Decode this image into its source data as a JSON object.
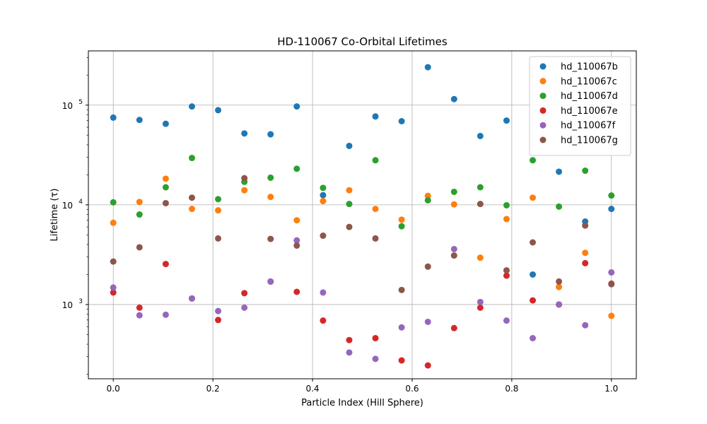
{
  "chart_data": {
    "type": "scatter",
    "title": "HD-110067 Co-Orbital Lifetimes",
    "xlabel": "Particle Index (Hill Sphere)",
    "ylabel": "Lifetime (τ)",
    "yscale": "log",
    "xlim": [
      -0.05,
      1.05
    ],
    "ylim": [
      180,
      350000
    ],
    "grid": true,
    "legend_position": "top-right",
    "x_ticks": [
      {
        "value": 0.0,
        "label": "0.0"
      },
      {
        "value": 0.2,
        "label": "0.2"
      },
      {
        "value": 0.4,
        "label": "0.4"
      },
      {
        "value": 0.6,
        "label": "0.6"
      },
      {
        "value": 0.8,
        "label": "0.8"
      },
      {
        "value": 1.0,
        "label": "1.0"
      }
    ],
    "y_ticks": [
      {
        "value": 1000,
        "base": "10",
        "exp": "3"
      },
      {
        "value": 10000,
        "base": "10",
        "exp": "4"
      },
      {
        "value": 100000,
        "base": "10",
        "exp": "5"
      }
    ],
    "x": [
      0.0,
      0.0526,
      0.1053,
      0.1579,
      0.2105,
      0.2632,
      0.3158,
      0.3684,
      0.4211,
      0.4737,
      0.5263,
      0.5789,
      0.6316,
      0.6842,
      0.7368,
      0.7895,
      0.8421,
      0.8947,
      0.9474,
      1.0
    ],
    "series": [
      {
        "name": "hd_110067b",
        "color": "#1f77b4",
        "values": [
          75000,
          71000,
          65000,
          97000,
          89000,
          52000,
          51000,
          97000,
          12500,
          39000,
          77000,
          69000,
          240000,
          115000,
          49000,
          70000,
          2000,
          21500,
          6800,
          9100
        ]
      },
      {
        "name": "hd_110067c",
        "color": "#ff7f0e",
        "values": [
          6600,
          10700,
          18300,
          9100,
          8800,
          14000,
          12000,
          7000,
          10900,
          14000,
          9100,
          7100,
          12300,
          10100,
          2950,
          7200,
          11800,
          1500,
          3300,
          770
        ]
      },
      {
        "name": "hd_110067d",
        "color": "#2ca02c",
        "values": [
          10600,
          8000,
          15000,
          29500,
          11400,
          17000,
          18700,
          23000,
          14800,
          10200,
          28000,
          6100,
          11100,
          13500,
          15000,
          9900,
          28000,
          9600,
          22000,
          12400
        ]
      },
      {
        "name": "hd_110067e",
        "color": "#d62728",
        "values": [
          1320,
          930,
          2550,
          1150,
          700,
          1300,
          1700,
          1340,
          690,
          440,
          460,
          275,
          245,
          580,
          930,
          1950,
          1100,
          1000,
          2600,
          1620
        ]
      },
      {
        "name": "hd_110067f",
        "color": "#9467bd",
        "values": [
          1480,
          780,
          790,
          1150,
          860,
          930,
          1700,
          4400,
          1320,
          330,
          285,
          590,
          670,
          3600,
          1060,
          690,
          460,
          1000,
          620,
          2100
        ]
      },
      {
        "name": "hd_110067g",
        "color": "#8c564b",
        "values": [
          2700,
          3750,
          10400,
          11800,
          4600,
          18500,
          4550,
          3900,
          4900,
          6000,
          4600,
          1400,
          2400,
          3100,
          10200,
          2200,
          4200,
          1700,
          6200,
          1600
        ]
      }
    ]
  }
}
